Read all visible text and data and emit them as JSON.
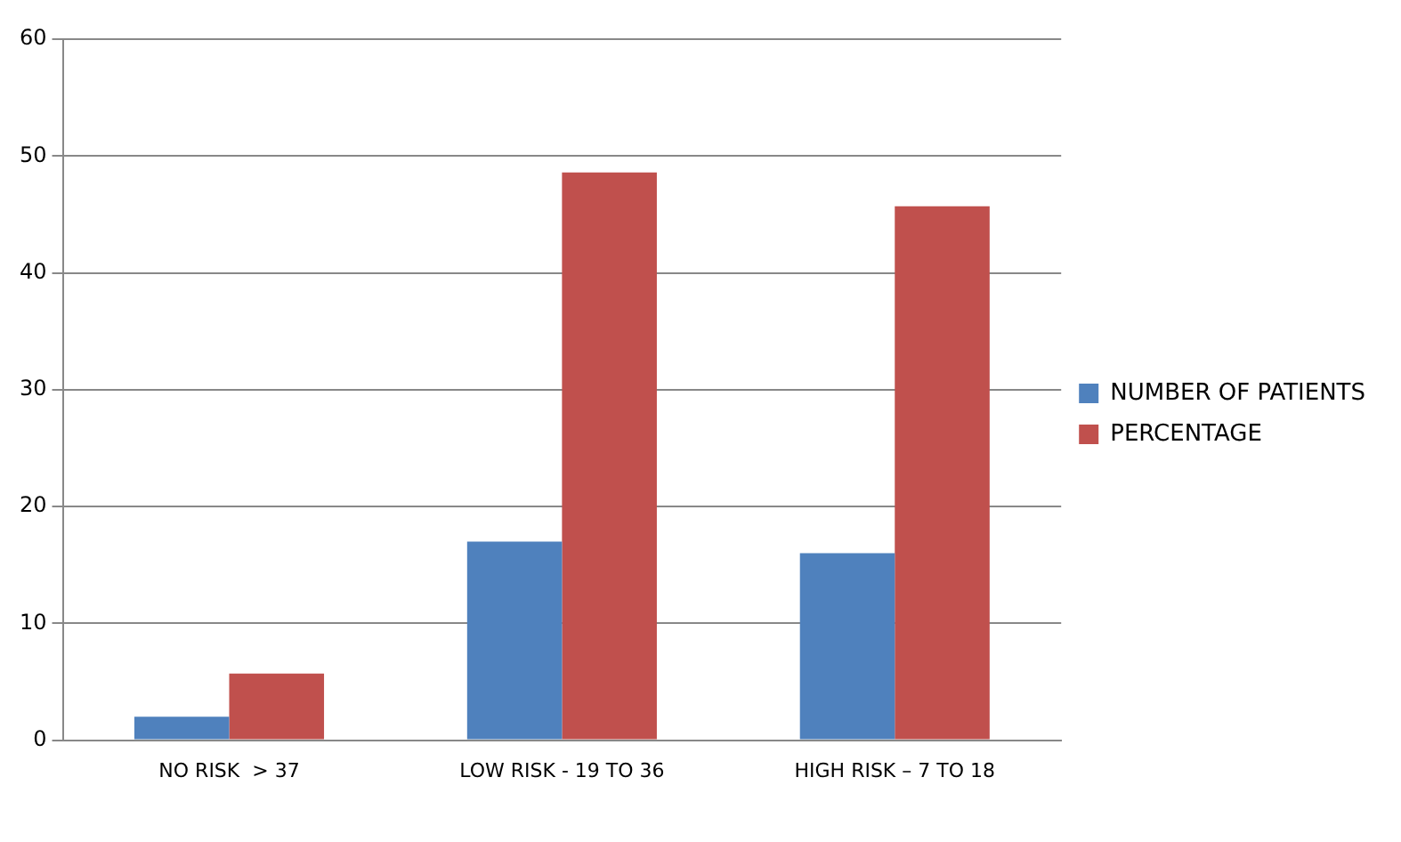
{
  "chart_data": {
    "type": "bar",
    "categories": [
      "NO RISK  > 37",
      "LOW RISK - 19 TO 36",
      "HIGH RISK – 7 TO 18"
    ],
    "series": [
      {
        "name": "NUMBER OF PATIENTS",
        "color": "#4f81bd",
        "values": [
          2,
          17,
          16
        ]
      },
      {
        "name": "PERCENTAGE",
        "color": "#c0504d",
        "values": [
          5.7,
          48.6,
          45.7
        ]
      }
    ],
    "ylim": [
      0,
      60
    ],
    "yticks": [
      0,
      10,
      20,
      30,
      40,
      50,
      60
    ],
    "grid": "y",
    "legend": "right"
  }
}
